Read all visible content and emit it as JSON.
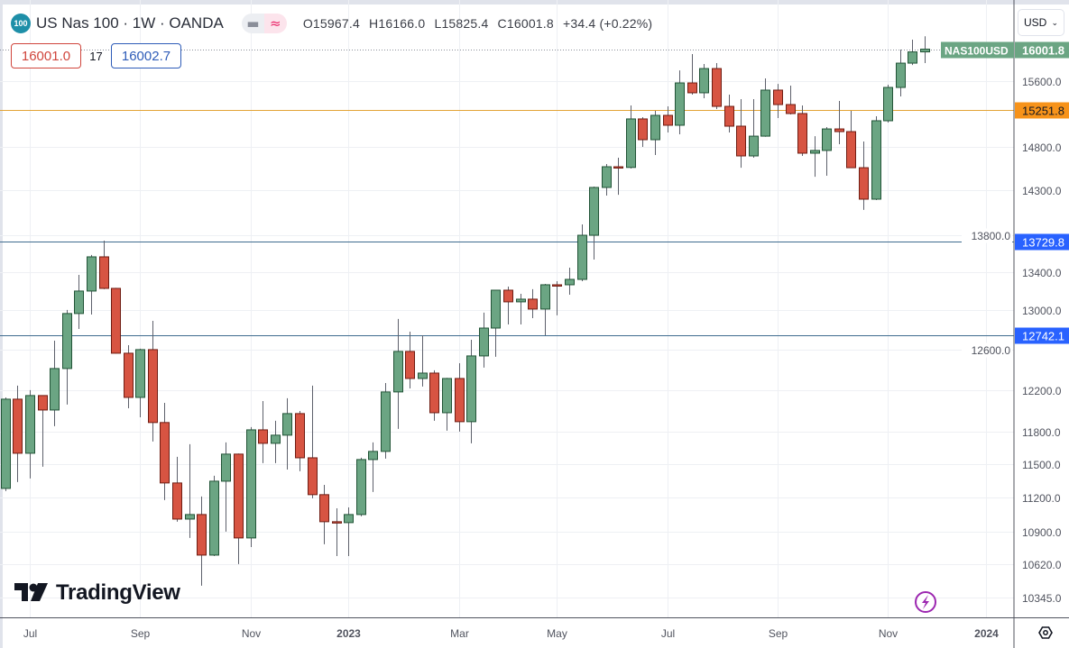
{
  "header": {
    "symbol_badge": "100",
    "title": "US Nas 100 · 1W · OANDA",
    "ohlc": {
      "open": "O15967.4",
      "high": "H16166.0",
      "low": "L15825.4",
      "close": "C16001.8",
      "change": "+34.4 (+0.22%)"
    },
    "sell_price": "16001.0",
    "spread": "17",
    "buy_price": "16002.7",
    "currency": "USD",
    "icons": [
      "minus-icon",
      "wave-approx-icon",
      "chevron-down-icon"
    ]
  },
  "watermark": {
    "text": "TradingView"
  },
  "bottom_icons": [
    "lightning-icon",
    "settings-hexagon-icon"
  ],
  "colors": {
    "up": "#6ba583",
    "up_border": "#225437",
    "down": "#d75442",
    "down_border": "#6f1d13",
    "orange_level": "#f7931a",
    "blue_level": "#2962ff",
    "last_price": "#6ba583"
  },
  "chart_data": {
    "type": "candlestick",
    "interval": "1W",
    "symbol": "NAS100USD",
    "y_scale": "log",
    "ylim": [
      10183,
      16640
    ],
    "xlim": [
      "2022-06-17",
      "2024-01-17"
    ],
    "grid": true,
    "y_ticks": [
      {
        "value": 15600,
        "label": "15600.0"
      },
      {
        "value": 14800,
        "label": "14800.0"
      },
      {
        "value": 14300,
        "label": "14300.0"
      },
      {
        "value": 13800,
        "label": "13800.0"
      },
      {
        "value": 13400,
        "label": "13400.0"
      },
      {
        "value": 13000,
        "label": "13000.0"
      },
      {
        "value": 12600,
        "label": "12600.0"
      },
      {
        "value": 12200,
        "label": "12200.0"
      },
      {
        "value": 11800,
        "label": "11800.0"
      },
      {
        "value": 11500,
        "label": "11500.0"
      },
      {
        "value": 11200,
        "label": "11200.0"
      },
      {
        "value": 10900,
        "label": "10900.0"
      },
      {
        "value": 10620,
        "label": "10620.0"
      },
      {
        "value": 10345,
        "label": "10345.0"
      }
    ],
    "x_ticks": [
      {
        "date": "2022-07-04",
        "label": "Jul",
        "bold": false
      },
      {
        "date": "2022-09-05",
        "label": "Sep",
        "bold": false
      },
      {
        "date": "2022-11-07",
        "label": "Nov",
        "bold": false
      },
      {
        "date": "2023-01-02",
        "label": "2023",
        "bold": true
      },
      {
        "date": "2023-03-06",
        "label": "Mar",
        "bold": false
      },
      {
        "date": "2023-05-01",
        "label": "May",
        "bold": false
      },
      {
        "date": "2023-07-03",
        "label": "Jul",
        "bold": false
      },
      {
        "date": "2023-09-04",
        "label": "Sep",
        "bold": false
      },
      {
        "date": "2023-11-06",
        "label": "Nov",
        "bold": false
      },
      {
        "date": "2024-01-01",
        "label": "2024",
        "bold": true
      }
    ],
    "price_lines": [
      {
        "value": 15251.8,
        "label": "15251.8",
        "kind": "orange"
      },
      {
        "value": 13729.8,
        "label": "13729.8",
        "kind": "blue"
      },
      {
        "value": 12742.1,
        "label": "12742.1",
        "kind": "blue"
      }
    ],
    "last_price": {
      "value": 16001.8,
      "label": "16001.8",
      "symbol_label": "NAS100USD"
    },
    "candles": [
      {
        "d": "2022-06-20",
        "o": 11283,
        "h": 12130,
        "l": 11259,
        "c": 12113
      },
      {
        "d": "2022-06-27",
        "o": 12113,
        "h": 12244,
        "l": 11340,
        "c": 11603
      },
      {
        "d": "2022-07-04",
        "o": 11603,
        "h": 12200,
        "l": 11373,
        "c": 12148
      },
      {
        "d": "2022-07-11",
        "o": 12148,
        "h": 12150,
        "l": 11479,
        "c": 12009
      },
      {
        "d": "2022-07-18",
        "o": 12009,
        "h": 12690,
        "l": 11856,
        "c": 12412
      },
      {
        "d": "2022-07-25",
        "o": 12412,
        "h": 13004,
        "l": 12061,
        "c": 12967
      },
      {
        "d": "2022-08-01",
        "o": 12967,
        "h": 13372,
        "l": 12809,
        "c": 13201
      },
      {
        "d": "2022-08-08",
        "o": 13201,
        "h": 13585,
        "l": 12957,
        "c": 13565
      },
      {
        "d": "2022-08-15",
        "o": 13565,
        "h": 13741,
        "l": 13220,
        "c": 13229
      },
      {
        "d": "2022-08-22",
        "o": 13229,
        "h": 13235,
        "l": 12560,
        "c": 12564
      },
      {
        "d": "2022-08-29",
        "o": 12564,
        "h": 12645,
        "l": 12026,
        "c": 12130
      },
      {
        "d": "2022-09-05",
        "o": 12130,
        "h": 12609,
        "l": 11940,
        "c": 12600
      },
      {
        "d": "2022-09-12",
        "o": 12600,
        "h": 12892,
        "l": 11712,
        "c": 11890
      },
      {
        "d": "2022-09-19",
        "o": 11890,
        "h": 12078,
        "l": 11179,
        "c": 11332
      },
      {
        "d": "2022-09-26",
        "o": 11332,
        "h": 11570,
        "l": 10988,
        "c": 11011
      },
      {
        "d": "2022-10-03",
        "o": 11011,
        "h": 11687,
        "l": 10847,
        "c": 11051
      },
      {
        "d": "2022-10-10",
        "o": 11051,
        "h": 11211,
        "l": 10443,
        "c": 10700
      },
      {
        "d": "2022-10-17",
        "o": 10700,
        "h": 11397,
        "l": 10692,
        "c": 11348
      },
      {
        "d": "2022-10-24",
        "o": 11348,
        "h": 11704,
        "l": 10902,
        "c": 11595
      },
      {
        "d": "2022-10-31",
        "o": 11595,
        "h": 11600,
        "l": 10624,
        "c": 10847
      },
      {
        "d": "2022-11-07",
        "o": 10847,
        "h": 11847,
        "l": 10769,
        "c": 11821
      },
      {
        "d": "2022-11-14",
        "o": 11821,
        "h": 12095,
        "l": 11512,
        "c": 11695
      },
      {
        "d": "2022-11-21",
        "o": 11695,
        "h": 11907,
        "l": 11512,
        "c": 11771
      },
      {
        "d": "2022-11-28",
        "o": 11771,
        "h": 12122,
        "l": 11454,
        "c": 11975
      },
      {
        "d": "2022-12-05",
        "o": 11975,
        "h": 12000,
        "l": 11438,
        "c": 11561
      },
      {
        "d": "2022-12-12",
        "o": 11561,
        "h": 12244,
        "l": 11195,
        "c": 11227
      },
      {
        "d": "2022-12-19",
        "o": 11227,
        "h": 11315,
        "l": 10793,
        "c": 10988
      },
      {
        "d": "2022-12-26",
        "o": 10988,
        "h": 11106,
        "l": 10692,
        "c": 10980
      },
      {
        "d": "2023-01-02",
        "o": 10980,
        "h": 11114,
        "l": 10692,
        "c": 11051
      },
      {
        "d": "2023-01-09",
        "o": 11051,
        "h": 11562,
        "l": 11035,
        "c": 11545
      },
      {
        "d": "2023-01-16",
        "o": 11545,
        "h": 11704,
        "l": 11251,
        "c": 11620
      },
      {
        "d": "2023-01-23",
        "o": 11620,
        "h": 12270,
        "l": 11553,
        "c": 12183
      },
      {
        "d": "2023-01-30",
        "o": 12183,
        "h": 12911,
        "l": 11830,
        "c": 12582
      },
      {
        "d": "2023-02-06",
        "o": 12582,
        "h": 12781,
        "l": 12217,
        "c": 12314
      },
      {
        "d": "2023-02-13",
        "o": 12314,
        "h": 12745,
        "l": 12235,
        "c": 12367
      },
      {
        "d": "2023-02-20",
        "o": 12367,
        "h": 12394,
        "l": 11907,
        "c": 11983
      },
      {
        "d": "2023-02-27",
        "o": 11983,
        "h": 12320,
        "l": 11813,
        "c": 12314
      },
      {
        "d": "2023-03-06",
        "o": 12314,
        "h": 12465,
        "l": 11805,
        "c": 11898
      },
      {
        "d": "2023-03-13",
        "o": 11898,
        "h": 12699,
        "l": 11695,
        "c": 12537
      },
      {
        "d": "2023-03-20",
        "o": 12537,
        "h": 12976,
        "l": 12421,
        "c": 12818
      },
      {
        "d": "2023-03-27",
        "o": 12818,
        "h": 13215,
        "l": 12528,
        "c": 13210
      },
      {
        "d": "2023-04-03",
        "o": 13210,
        "h": 13248,
        "l": 12855,
        "c": 13088
      },
      {
        "d": "2023-04-10",
        "o": 13088,
        "h": 13172,
        "l": 12855,
        "c": 13116
      },
      {
        "d": "2023-04-17",
        "o": 13116,
        "h": 13220,
        "l": 12920,
        "c": 13013
      },
      {
        "d": "2023-04-24",
        "o": 13013,
        "h": 13276,
        "l": 12745,
        "c": 13267
      },
      {
        "d": "2023-05-01",
        "o": 13267,
        "h": 13305,
        "l": 12948,
        "c": 13260
      },
      {
        "d": "2023-05-08",
        "o": 13267,
        "h": 13449,
        "l": 13163,
        "c": 13324
      },
      {
        "d": "2023-05-15",
        "o": 13324,
        "h": 13920,
        "l": 13305,
        "c": 13800
      },
      {
        "d": "2023-05-22",
        "o": 13800,
        "h": 14345,
        "l": 13536,
        "c": 14335
      },
      {
        "d": "2023-05-29",
        "o": 14335,
        "h": 14604,
        "l": 14242,
        "c": 14573
      },
      {
        "d": "2023-06-05",
        "o": 14573,
        "h": 14678,
        "l": 14252,
        "c": 14565
      },
      {
        "d": "2023-06-12",
        "o": 14565,
        "h": 15301,
        "l": 14552,
        "c": 15138
      },
      {
        "d": "2023-06-19",
        "o": 15138,
        "h": 15159,
        "l": 14805,
        "c": 14890
      },
      {
        "d": "2023-06-26",
        "o": 14890,
        "h": 15235,
        "l": 14710,
        "c": 15181
      },
      {
        "d": "2023-07-03",
        "o": 15181,
        "h": 15290,
        "l": 14975,
        "c": 15062
      },
      {
        "d": "2023-07-10",
        "o": 15062,
        "h": 15734,
        "l": 14954,
        "c": 15578
      },
      {
        "d": "2023-07-17",
        "o": 15578,
        "h": 15939,
        "l": 15434,
        "c": 15456
      },
      {
        "d": "2023-07-24",
        "o": 15456,
        "h": 15814,
        "l": 15389,
        "c": 15757
      },
      {
        "d": "2023-07-31",
        "o": 15757,
        "h": 15825,
        "l": 15257,
        "c": 15290
      },
      {
        "d": "2023-08-07",
        "o": 15290,
        "h": 15434,
        "l": 14975,
        "c": 15051
      },
      {
        "d": "2023-08-14",
        "o": 15051,
        "h": 15378,
        "l": 14562,
        "c": 14699
      },
      {
        "d": "2023-08-21",
        "o": 14699,
        "h": 15378,
        "l": 14678,
        "c": 14932
      },
      {
        "d": "2023-08-28",
        "o": 14932,
        "h": 15634,
        "l": 14925,
        "c": 15489
      },
      {
        "d": "2023-09-04",
        "o": 15489,
        "h": 15566,
        "l": 15148,
        "c": 15312
      },
      {
        "d": "2023-09-11",
        "o": 15312,
        "h": 15544,
        "l": 15192,
        "c": 15203
      },
      {
        "d": "2023-09-18",
        "o": 15203,
        "h": 15301,
        "l": 14699,
        "c": 14731
      },
      {
        "d": "2023-09-25",
        "o": 14731,
        "h": 14932,
        "l": 14458,
        "c": 14763
      },
      {
        "d": "2023-10-02",
        "o": 14763,
        "h": 15040,
        "l": 14469,
        "c": 15018
      },
      {
        "d": "2023-10-09",
        "o": 15018,
        "h": 15356,
        "l": 14837,
        "c": 14986
      },
      {
        "d": "2023-10-16",
        "o": 14986,
        "h": 15235,
        "l": 14560,
        "c": 14562
      },
      {
        "d": "2023-10-23",
        "o": 14562,
        "h": 14869,
        "l": 14081,
        "c": 14202
      },
      {
        "d": "2023-10-30",
        "o": 14202,
        "h": 15170,
        "l": 14192,
        "c": 15116
      },
      {
        "d": "2023-11-06",
        "o": 15116,
        "h": 15555,
        "l": 15094,
        "c": 15522
      },
      {
        "d": "2023-11-13",
        "o": 15522,
        "h": 15996,
        "l": 15411,
        "c": 15825
      },
      {
        "d": "2023-11-20",
        "o": 15825,
        "h": 16123,
        "l": 15802,
        "c": 15967
      },
      {
        "d": "2023-11-27",
        "o": 15967.4,
        "h": 16166.0,
        "l": 15825.4,
        "c": 16001.8
      }
    ]
  }
}
